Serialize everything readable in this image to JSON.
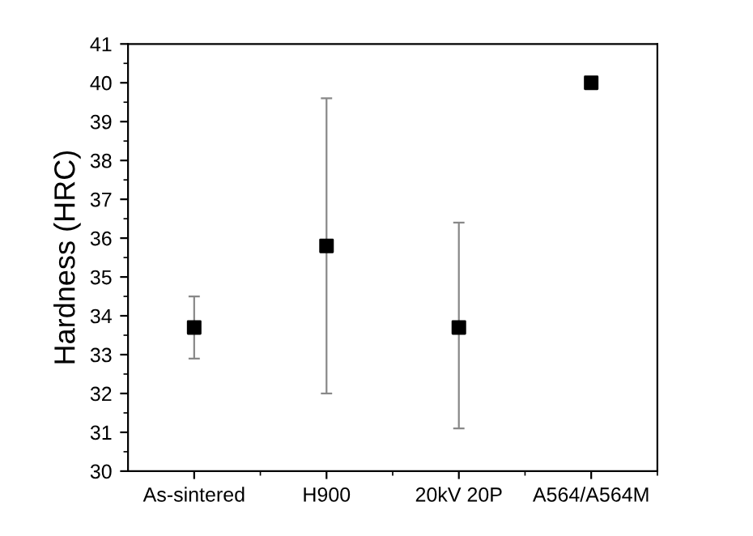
{
  "chart_data": {
    "type": "scatter",
    "ylabel": "Hardness (HRC)",
    "categories": [
      "As-sintered",
      "H900",
      "20kV 20P",
      "A564/A564M"
    ],
    "values": [
      33.7,
      35.8,
      33.7,
      40.0
    ],
    "errors": [
      [
        32.9,
        34.5
      ],
      [
        32.0,
        39.6
      ],
      [
        31.1,
        36.4
      ],
      null
    ],
    "color": "#000000",
    "marker": "square",
    "ylim": [
      30,
      41
    ],
    "yticks": [
      30,
      31,
      32,
      33,
      34,
      35,
      36,
      37,
      38,
      39,
      40,
      41
    ],
    "grid": false
  }
}
